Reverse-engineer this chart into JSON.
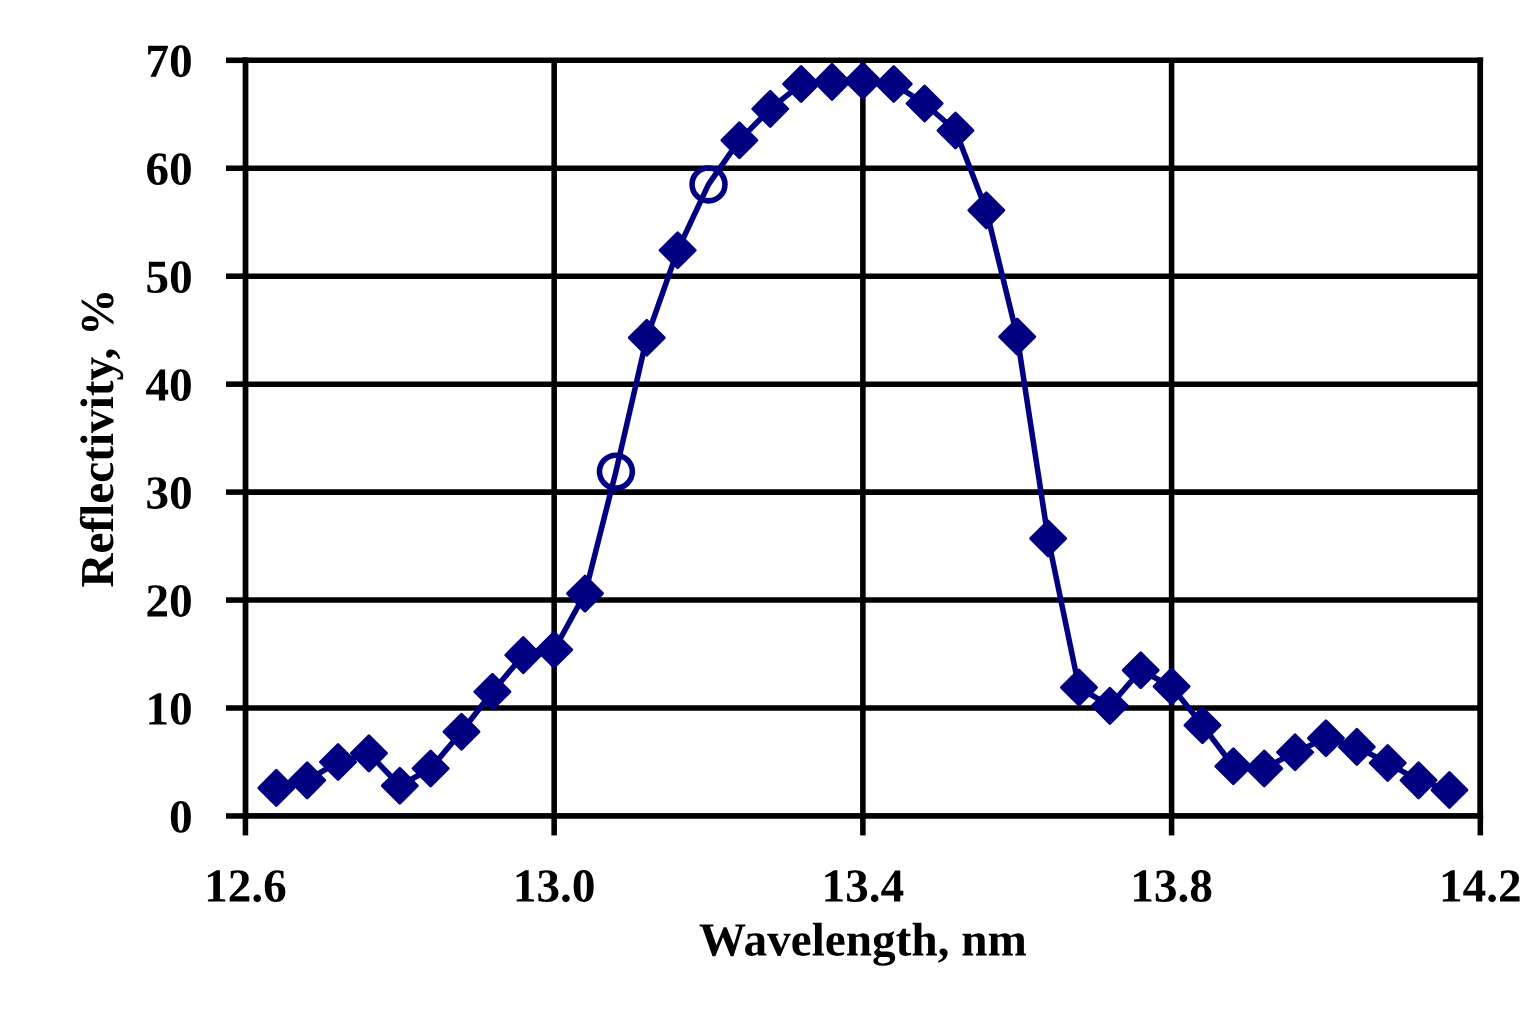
{
  "chart_data": {
    "type": "line",
    "xlabel": "Wavelength, nm",
    "ylabel": "Reflectivity, %",
    "xlim": [
      12.6,
      14.2
    ],
    "xticks": [
      {
        "value": 12.6,
        "label": "12.6"
      },
      {
        "value": 13.0,
        "label": "13.0"
      },
      {
        "value": 13.4,
        "label": "13.4"
      },
      {
        "value": 13.8,
        "label": "13.8"
      },
      {
        "value": 14.2,
        "label": "14.2"
      }
    ],
    "ylim": [
      0,
      70
    ],
    "yticks": [
      0,
      10,
      20,
      30,
      40,
      50,
      60,
      70
    ],
    "grid": true,
    "legend": false,
    "series": [
      {
        "marker": "none",
        "line_style": "solid",
        "color": "#000080",
        "x": [
          12.64,
          12.68,
          12.72,
          12.76,
          12.8,
          12.84,
          12.88,
          12.92,
          12.96,
          13.0,
          13.04,
          13.08,
          13.12,
          13.16,
          13.2,
          13.24,
          13.28,
          13.32,
          13.36,
          13.4,
          13.44,
          13.48,
          13.52,
          13.56,
          13.6,
          13.64,
          13.68,
          13.72,
          13.76,
          13.8,
          13.84,
          13.88,
          13.92,
          13.96,
          14.0,
          14.04,
          14.08,
          14.12,
          14.16
        ],
        "values": [
          2.6,
          3.3,
          5.0,
          5.8,
          2.8,
          4.4,
          7.8,
          11.5,
          14.9,
          15.4,
          20.6,
          31.9,
          44.3,
          52.4,
          58.5,
          62.6,
          65.5,
          67.8,
          68.0,
          68.1,
          67.8,
          66.0,
          63.5,
          56.1,
          44.4,
          25.7,
          11.9,
          10.2,
          13.5,
          12.0,
          8.4,
          4.6,
          4.4,
          5.9,
          7.2,
          6.4,
          4.9,
          3.3,
          2.4
        ]
      },
      {
        "type": "scatter",
        "marker": "diamond",
        "color": "#000080",
        "x": [
          12.64,
          12.68,
          12.72,
          12.76,
          12.8,
          12.84,
          12.88,
          12.92,
          12.96,
          13.0,
          13.04,
          13.12,
          13.16,
          13.24,
          13.28,
          13.32,
          13.36,
          13.4,
          13.44,
          13.48,
          13.52,
          13.56,
          13.6,
          13.64,
          13.68,
          13.72,
          13.76,
          13.8,
          13.84,
          13.88,
          13.92,
          13.96,
          14.0,
          14.04,
          14.08,
          14.12,
          14.16
        ],
        "values": [
          2.6,
          3.3,
          5.0,
          5.8,
          2.8,
          4.4,
          7.8,
          11.5,
          14.9,
          15.4,
          20.6,
          44.3,
          52.4,
          62.6,
          65.5,
          67.8,
          68.0,
          68.1,
          67.8,
          66.0,
          63.5,
          56.1,
          44.4,
          25.7,
          11.9,
          10.2,
          13.5,
          12.0,
          8.4,
          4.6,
          4.4,
          5.9,
          7.2,
          6.4,
          4.9,
          3.3,
          2.4
        ]
      },
      {
        "type": "scatter",
        "marker": "circle",
        "color": "#000080",
        "x": [
          13.08,
          13.2
        ],
        "values": [
          31.9,
          58.5
        ]
      }
    ]
  }
}
